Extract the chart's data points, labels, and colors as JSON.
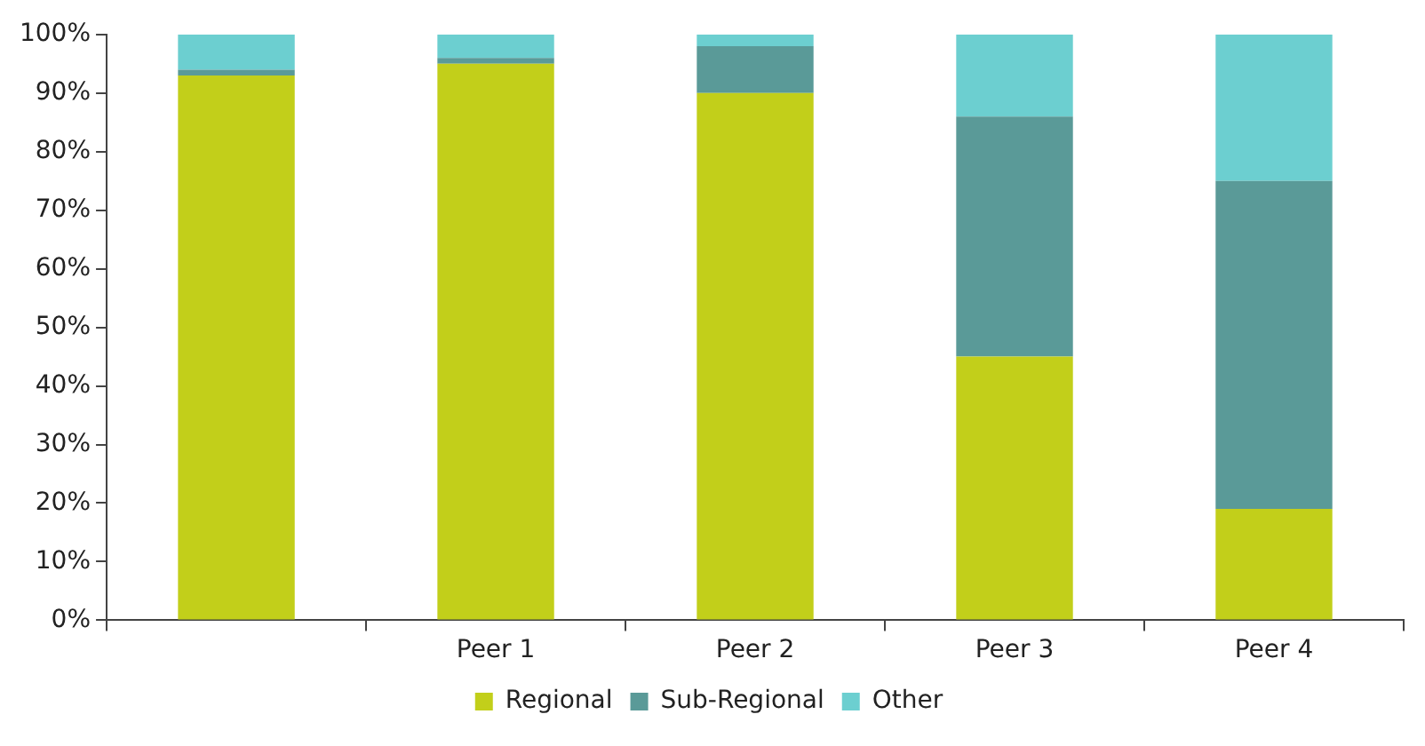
{
  "chart_data": {
    "type": "bar",
    "stacked": true,
    "categories": [
      null,
      "Peer 1",
      "Peer 2",
      "Peer 3",
      "Peer 4"
    ],
    "series": [
      {
        "name": "Regional",
        "color": "#c2cf1a",
        "values": [
          93,
          95,
          90,
          45,
          19
        ]
      },
      {
        "name": "Sub-Regional",
        "color": "#5a9a98",
        "values": [
          1,
          1,
          8,
          41,
          56
        ]
      },
      {
        "name": "Other",
        "color": "#6ccfd0",
        "values": [
          6,
          4,
          2,
          14,
          25
        ]
      }
    ],
    "ylim": [
      0,
      100
    ],
    "yticks": [
      {
        "value": 0,
        "label": "0%"
      },
      {
        "value": 10,
        "label": "10%"
      },
      {
        "value": 20,
        "label": "20%"
      },
      {
        "value": 30,
        "label": "30%"
      },
      {
        "value": 40,
        "label": "40%"
      },
      {
        "value": 50,
        "label": "50%"
      },
      {
        "value": 60,
        "label": "60%"
      },
      {
        "value": 70,
        "label": "70%"
      },
      {
        "value": 80,
        "label": "80%"
      },
      {
        "value": 90,
        "label": "90%"
      },
      {
        "value": 100,
        "label": "100%"
      }
    ],
    "legend": "bottom",
    "grid": false
  }
}
